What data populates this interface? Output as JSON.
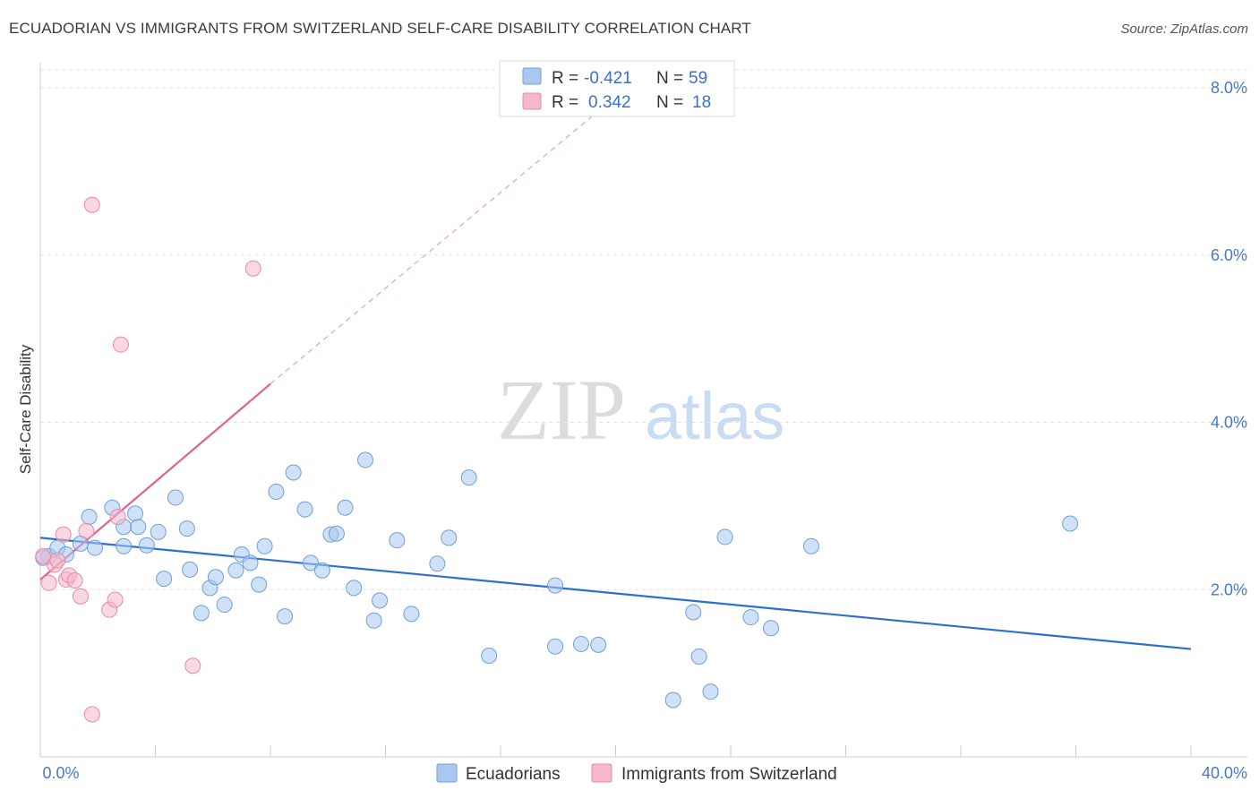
{
  "header": {
    "title": "ECUADORIAN VS IMMIGRANTS FROM SWITZERLAND SELF-CARE DISABILITY CORRELATION CHART",
    "source": "Source: ZipAtlas.com"
  },
  "watermark": {
    "zip": "ZIP",
    "atlas": "atlas"
  },
  "legend": {
    "rows": [
      {
        "r_label": "R = ",
        "r_value": "-0.421",
        "n_label": "N = ",
        "n_value": "59",
        "color": "#a8c8f0"
      },
      {
        "r_label": "R = ",
        "r_value": "0.342",
        "n_label": "N = ",
        "n_value": "18",
        "color": "#f5b8ca"
      }
    ]
  },
  "chart_data": {
    "type": "scatter",
    "ylabel": "Self-Care Disability",
    "xlim": [
      0,
      40
    ],
    "ylim": [
      0,
      8.3
    ],
    "x_tick_labels": [
      "0.0%",
      "40.0%"
    ],
    "y_ticks": [
      2,
      4,
      6,
      8
    ],
    "y_tick_labels": [
      "2.0%",
      "4.0%",
      "6.0%",
      "8.0%"
    ],
    "grid": true,
    "legend_position": "top-center",
    "series": [
      {
        "name": "Ecuadorians",
        "color": "#a8c8f0",
        "stroke": "#6f9fd8",
        "line_color": "#2b6fd0",
        "trend": {
          "x0": 0,
          "y0": 2.62,
          "x1": 40,
          "y1": 1.29
        },
        "points": [
          [
            0.3,
            2.4
          ],
          [
            0.6,
            2.5
          ],
          [
            0.9,
            2.42
          ],
          [
            1.4,
            2.55
          ],
          [
            1.7,
            2.87
          ],
          [
            1.9,
            2.5
          ],
          [
            2.5,
            2.98
          ],
          [
            2.9,
            2.52
          ],
          [
            2.9,
            2.75
          ],
          [
            3.3,
            2.91
          ],
          [
            3.4,
            2.75
          ],
          [
            3.7,
            2.53
          ],
          [
            4.1,
            2.69
          ],
          [
            4.3,
            2.13
          ],
          [
            4.7,
            3.1
          ],
          [
            5.1,
            2.73
          ],
          [
            5.2,
            2.24
          ],
          [
            5.6,
            1.72
          ],
          [
            5.9,
            2.02
          ],
          [
            6.1,
            2.15
          ],
          [
            6.4,
            1.82
          ],
          [
            6.8,
            2.23
          ],
          [
            7.0,
            2.42
          ],
          [
            7.3,
            2.32
          ],
          [
            7.6,
            2.06
          ],
          [
            7.8,
            2.52
          ],
          [
            8.2,
            3.17
          ],
          [
            8.5,
            1.68
          ],
          [
            8.8,
            3.4
          ],
          [
            9.2,
            2.96
          ],
          [
            9.4,
            2.32
          ],
          [
            9.8,
            2.23
          ],
          [
            10.1,
            2.66
          ],
          [
            10.3,
            2.67
          ],
          [
            10.6,
            2.98
          ],
          [
            10.9,
            2.02
          ],
          [
            11.3,
            3.55
          ],
          [
            11.6,
            1.63
          ],
          [
            11.8,
            1.87
          ],
          [
            12.4,
            2.59
          ],
          [
            12.9,
            1.71
          ],
          [
            13.8,
            2.31
          ],
          [
            14.2,
            2.62
          ],
          [
            14.9,
            3.34
          ],
          [
            15.6,
            1.21
          ],
          [
            17.9,
            2.05
          ],
          [
            17.9,
            1.32
          ],
          [
            18.8,
            1.35
          ],
          [
            19.4,
            1.34
          ],
          [
            22.0,
            0.68
          ],
          [
            22.7,
            1.73
          ],
          [
            22.9,
            1.2
          ],
          [
            23.3,
            0.78
          ],
          [
            23.8,
            2.63
          ],
          [
            24.7,
            1.67
          ],
          [
            25.4,
            1.54
          ],
          [
            26.8,
            2.52
          ],
          [
            35.8,
            2.79
          ],
          [
            0.1,
            2.38
          ]
        ]
      },
      {
        "name": "Immigrants from Switzerland",
        "color": "#f5b8ca",
        "stroke": "#e88aa8",
        "line_color": "#e0608e",
        "trend": {
          "x0": 0,
          "y0": 2.12,
          "x1": 8.0,
          "y1": 4.46
        },
        "trend_ext": {
          "x0": 8.0,
          "y0": 4.46,
          "x1": 19.5,
          "y1": 7.75
        },
        "points": [
          [
            0.1,
            2.4
          ],
          [
            0.3,
            2.08
          ],
          [
            0.5,
            2.3
          ],
          [
            0.8,
            2.66
          ],
          [
            0.9,
            2.12
          ],
          [
            1.0,
            2.17
          ],
          [
            1.2,
            2.11
          ],
          [
            1.4,
            1.92
          ],
          [
            1.6,
            2.7
          ],
          [
            1.8,
            0.51
          ],
          [
            1.8,
            6.6
          ],
          [
            2.4,
            1.76
          ],
          [
            2.6,
            1.88
          ],
          [
            2.7,
            2.87
          ],
          [
            2.8,
            4.93
          ],
          [
            5.3,
            1.09
          ],
          [
            7.4,
            5.84
          ],
          [
            0.6,
            2.35
          ]
        ]
      }
    ]
  },
  "bottom_legend": {
    "items": [
      {
        "label": "Ecuadorians",
        "color": "#a8c8f0"
      },
      {
        "label": "Immigrants from Switzerland",
        "color": "#f5b8ca"
      }
    ]
  }
}
